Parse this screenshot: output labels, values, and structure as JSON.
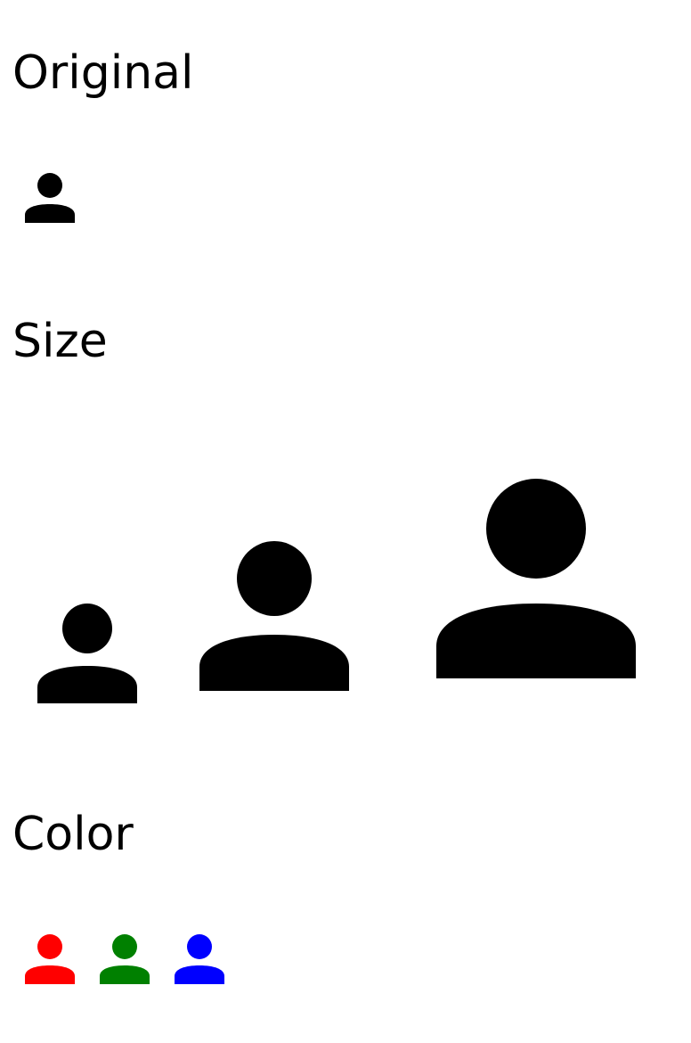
{
  "sections": {
    "original": {
      "title": "Original"
    },
    "size": {
      "title": "Size"
    },
    "color": {
      "title": "Color"
    }
  },
  "icon": {
    "name": "person-icon"
  },
  "colors": {
    "default": "#000000",
    "red": "#ff0000",
    "green": "#008000",
    "blue": "#0000ff"
  }
}
